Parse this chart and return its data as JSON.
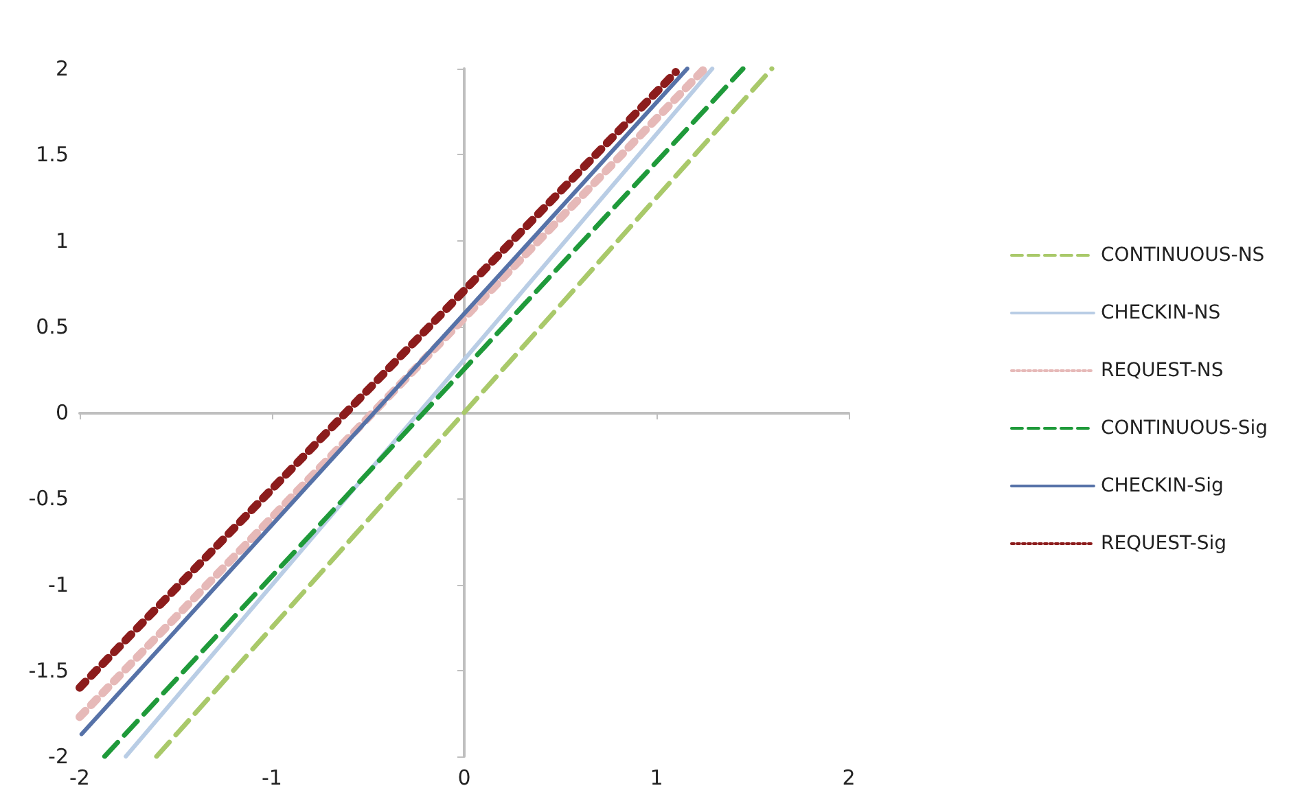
{
  "chart_data": {
    "type": "line",
    "xlim": [
      -2,
      2
    ],
    "ylim": [
      -2,
      2
    ],
    "xticks": [
      -2,
      -1,
      0,
      1,
      2
    ],
    "yticks": [
      -2,
      -1.5,
      -1,
      -0.5,
      0,
      0.5,
      1,
      1.5,
      2
    ],
    "legend": "right",
    "marker": "none",
    "series": [
      {
        "name": "CONTINUOUS-NS",
        "color": "#a9c96a",
        "line_style": "dashed",
        "x": [
          -1.6,
          1.6
        ],
        "values": [
          -2,
          2
        ]
      },
      {
        "name": "CHECKIN-NS",
        "color": "#b9cde5",
        "line_style": "solid",
        "x": [
          -1.76,
          1.29
        ],
        "values": [
          -2,
          2
        ]
      },
      {
        "name": "REQUEST-NS",
        "color": "#e6b9b8",
        "line_style": "dotted",
        "x": [
          -2,
          1.25
        ],
        "values": [
          -1.77,
          2
        ]
      },
      {
        "name": "CONTINUOUS-Sig",
        "color": "#1f9a3a",
        "line_style": "dashed",
        "x": [
          -1.87,
          1.45
        ],
        "values": [
          -2,
          2
        ]
      },
      {
        "name": "CHECKIN-Sig",
        "color": "#5672a8",
        "line_style": "solid",
        "x": [
          -1.99,
          1.16
        ],
        "values": [
          -1.87,
          2
        ]
      },
      {
        "name": "REQUEST-Sig",
        "color": "#8c1c1c",
        "line_style": "dotted",
        "x": [
          -2,
          1.1
        ],
        "values": [
          -1.6,
          1.98
        ]
      }
    ]
  }
}
